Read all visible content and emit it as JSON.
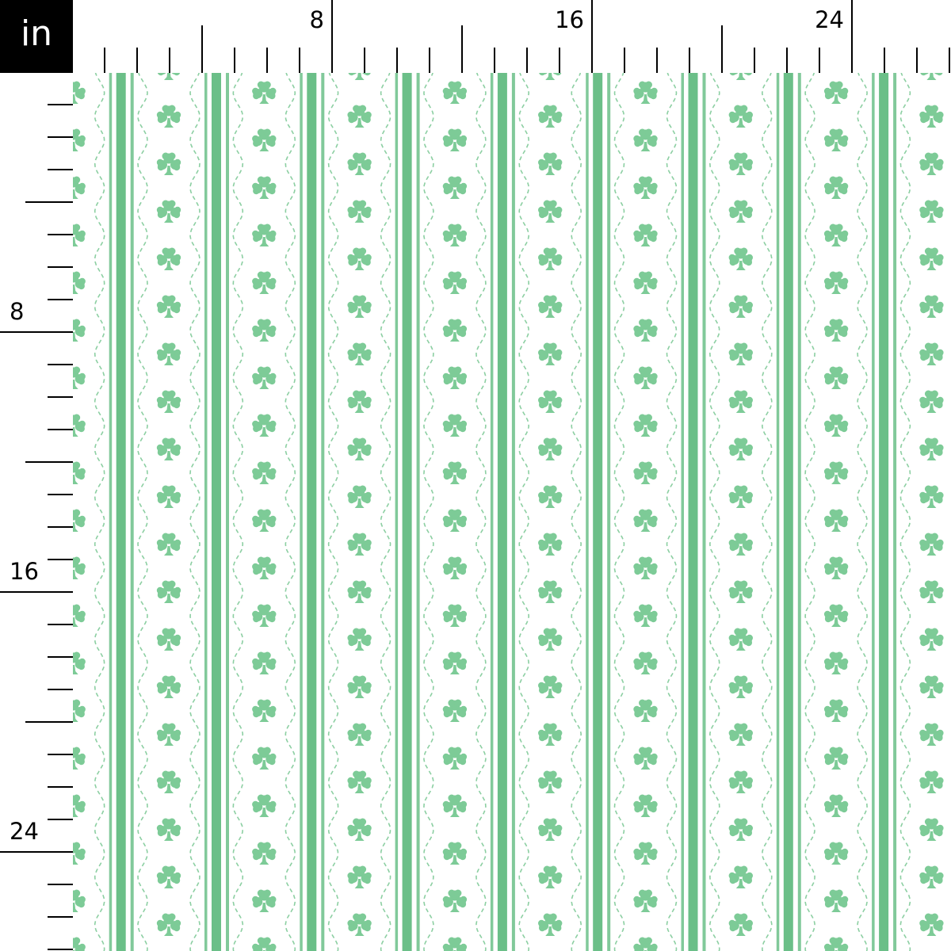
{
  "ruler": {
    "unit_label": "in",
    "top_labels": [
      "8",
      "16",
      "24"
    ],
    "left_labels": [
      "8",
      "16",
      "24"
    ],
    "label_every_inches": 8,
    "major_tick_every_inches": 4
  },
  "fabric": {
    "pattern": "shamrock stripes with wavy dashed lines",
    "icons": [
      "shamrock-icon"
    ],
    "colors": {
      "stripe": "#6bbf88",
      "shamrock": "#7dcb97",
      "dash": "#8ccfa2",
      "background": "#ffffff"
    }
  }
}
